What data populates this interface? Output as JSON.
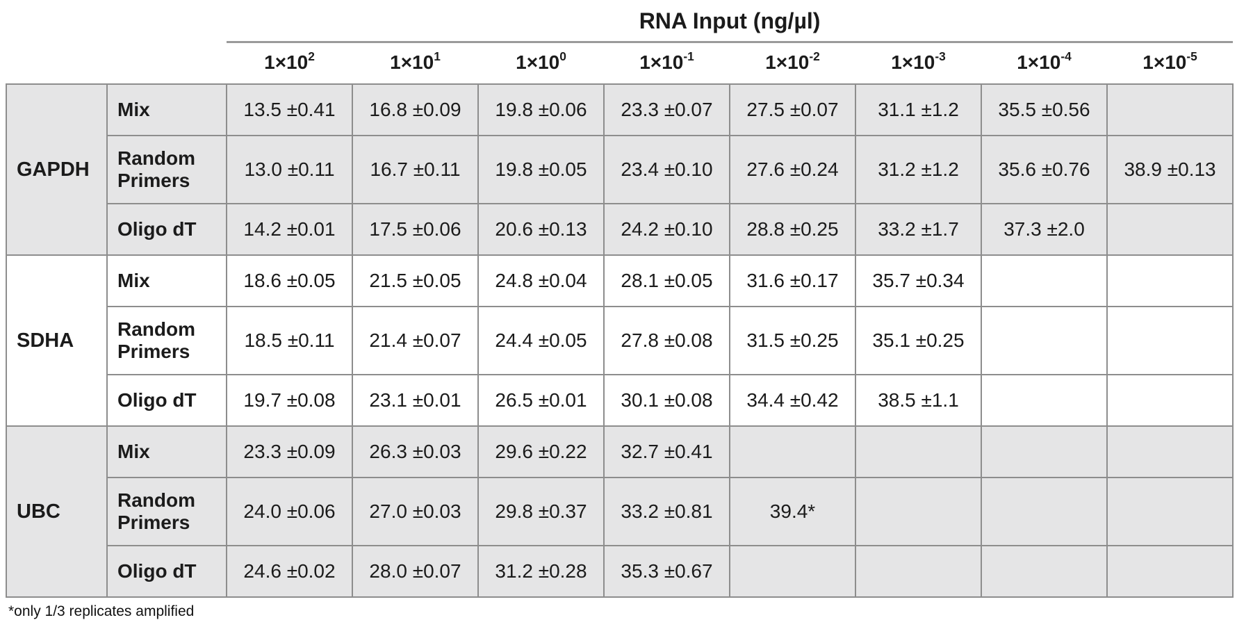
{
  "title": "RNA Input (ng/µl)",
  "footnote": "*only 1/3 replicates amplified",
  "colors": {
    "shaded_row_bg": "#e5e5e6",
    "plain_row_bg": "#ffffff",
    "grid_border": "#8d8d8d",
    "header_rule": "#9a9a9a",
    "text": "#1b1b1b"
  },
  "chart_data": {
    "type": "table",
    "title": "RNA Input (ng/µl)",
    "columns": [
      {
        "base": "1×10",
        "exp": "2"
      },
      {
        "base": "1×10",
        "exp": "1"
      },
      {
        "base": "1×10",
        "exp": "0"
      },
      {
        "base": "1×10",
        "exp": "-1"
      },
      {
        "base": "1×10",
        "exp": "-2"
      },
      {
        "base": "1×10",
        "exp": "-3"
      },
      {
        "base": "1×10",
        "exp": "-4"
      },
      {
        "base": "1×10",
        "exp": "-5"
      }
    ],
    "groups": [
      {
        "gene": "GAPDH",
        "rows": [
          {
            "label": "Mix",
            "values": [
              "13.5 ±0.41",
              "16.8 ±0.09",
              "19.8 ±0.06",
              "23.3 ±0.07",
              "27.5 ±0.07",
              "31.1 ±1.2",
              "35.5 ±0.56",
              ""
            ]
          },
          {
            "label": "Random Primers",
            "values": [
              "13.0 ±0.11",
              "16.7 ±0.11",
              "19.8 ±0.05",
              "23.4 ±0.10",
              "27.6 ±0.24",
              "31.2 ±1.2",
              "35.6 ±0.76",
              "38.9 ±0.13"
            ]
          },
          {
            "label": "Oligo dT",
            "values": [
              "14.2 ±0.01",
              "17.5 ±0.06",
              "20.6 ±0.13",
              "24.2 ±0.10",
              "28.8 ±0.25",
              "33.2 ±1.7",
              "37.3 ±2.0",
              ""
            ]
          }
        ]
      },
      {
        "gene": "SDHA",
        "rows": [
          {
            "label": "Mix",
            "values": [
              "18.6 ±0.05",
              "21.5 ±0.05",
              "24.8 ±0.04",
              "28.1 ±0.05",
              "31.6 ±0.17",
              "35.7 ±0.34",
              "",
              ""
            ]
          },
          {
            "label": "Random Primers",
            "values": [
              "18.5 ±0.11",
              "21.4 ±0.07",
              "24.4 ±0.05",
              "27.8 ±0.08",
              "31.5 ±0.25",
              "35.1 ±0.25",
              "",
              ""
            ]
          },
          {
            "label": "Oligo dT",
            "values": [
              "19.7 ±0.08",
              "23.1 ±0.01",
              "26.5 ±0.01",
              "30.1 ±0.08",
              "34.4 ±0.42",
              "38.5 ±1.1",
              "",
              ""
            ]
          }
        ]
      },
      {
        "gene": "UBC",
        "rows": [
          {
            "label": "Mix",
            "values": [
              "23.3 ±0.09",
              "26.3 ±0.03",
              "29.6 ±0.22",
              "32.7 ±0.41",
              "",
              "",
              "",
              ""
            ]
          },
          {
            "label": "Random Primers",
            "values": [
              "24.0 ±0.06",
              "27.0 ±0.03",
              "29.8 ±0.37",
              "33.2 ±0.81",
              "39.4*",
              "",
              "",
              ""
            ]
          },
          {
            "label": "Oligo dT",
            "values": [
              "24.6 ±0.02",
              "28.0 ±0.07",
              "31.2 ±0.28",
              "35.3 ±0.67",
              "",
              "",
              "",
              ""
            ]
          }
        ]
      }
    ]
  }
}
